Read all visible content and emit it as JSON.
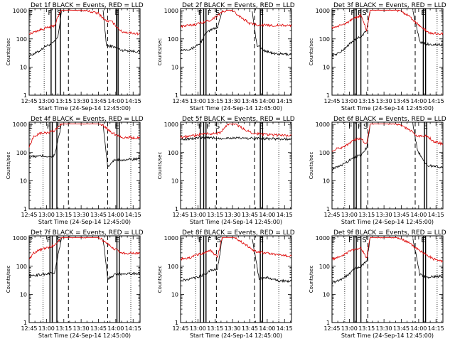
{
  "layout": "3x3 grid",
  "colors": {
    "events": "#000000",
    "lld": "#dd0000",
    "background": "#ffffff",
    "axes": "#000000"
  },
  "shared": {
    "xlabel": "Start Time (24-Sep-14 12:45:00)",
    "ylabel": "Counts/sec",
    "x_tick_labels": [
      "12:45",
      "13:00",
      "13:15",
      "13:30",
      "13:45",
      "14:00",
      "14:15"
    ],
    "y_tick_labels": [
      "1",
      "10",
      "100",
      "1000"
    ],
    "y_scale": "log",
    "ylim": [
      1,
      1200
    ],
    "xlim_minutes": [
      0,
      96
    ],
    "series_names": [
      "Events",
      "LLD"
    ]
  },
  "chart_data": [
    {
      "type": "line",
      "title": "Det 1f BLACK = Events, RED = LLD",
      "markers": [
        {
          "letter": "E",
          "t": 1
        },
        {
          "letter": "F",
          "t": 18
        },
        {
          "letter": "S",
          "t": 26
        },
        {
          "letter": "E",
          "t": 76
        }
      ],
      "solid_lines": [
        19,
        23,
        27,
        75.5,
        77
      ],
      "dashed_lines": [
        34,
        68
      ],
      "dotted_lines": [
        13,
        87
      ],
      "gap": [
        28,
        64
      ],
      "series": [
        {
          "name": "Events",
          "x": [
            0,
            8,
            14,
            19,
            22,
            25,
            28,
            64,
            67,
            72,
            80,
            96
          ],
          "y": [
            25,
            35,
            55,
            65,
            80,
            120,
            1000,
            1000,
            55,
            55,
            40,
            35
          ]
        },
        {
          "name": "LLD",
          "x": [
            0,
            8,
            14,
            19,
            22,
            25,
            28,
            45,
            60,
            66,
            72,
            80,
            96
          ],
          "y": [
            150,
            200,
            240,
            270,
            300,
            600,
            1100,
            1100,
            800,
            450,
            400,
            180,
            150
          ]
        }
      ]
    },
    {
      "type": "line",
      "title": "Det 2f BLACK = Events, RED = LLD",
      "markers": [
        {
          "letter": "F",
          "t": 17
        },
        {
          "letter": "F",
          "t": 25
        },
        {
          "letter": "S",
          "t": 32
        },
        {
          "letter": "E",
          "t": 70
        }
      ],
      "solid_lines": [
        17,
        20,
        22,
        69,
        71
      ],
      "dashed_lines": [
        31,
        64
      ],
      "dotted_lines": [
        13,
        85
      ],
      "gap": [
        36,
        62
      ],
      "series": [
        {
          "name": "Events",
          "x": [
            0,
            10,
            14,
            17,
            22,
            28,
            32,
            36,
            62,
            66,
            72,
            80,
            96
          ],
          "y": [
            40,
            45,
            60,
            70,
            160,
            230,
            260,
            1000,
            1000,
            60,
            40,
            30,
            28
          ]
        },
        {
          "name": "LLD",
          "x": [
            0,
            8,
            14,
            20,
            25,
            30,
            36,
            44,
            52,
            60,
            66,
            76,
            96
          ],
          "y": [
            280,
            300,
            340,
            400,
            450,
            600,
            900,
            1100,
            600,
            350,
            320,
            300,
            300
          ]
        }
      ]
    },
    {
      "type": "line",
      "title": "Det 3f BLACK = Events, RED = LLD",
      "markers": [
        {
          "letter": "E",
          "t": 1
        },
        {
          "letter": "F",
          "t": 18
        },
        {
          "letter": "F",
          "t": 24
        },
        {
          "letter": "S",
          "t": 28
        },
        {
          "letter": "E",
          "t": 79
        }
      ],
      "solid_lines": [
        19,
        21,
        25,
        79,
        81
      ],
      "dashed_lines": [
        31,
        72
      ],
      "dotted_lines": [
        11,
        91
      ],
      "gap": [
        33,
        70
      ],
      "series": [
        {
          "name": "Events",
          "x": [
            0,
            8,
            14,
            19,
            25,
            30,
            33,
            70,
            76,
            82,
            96
          ],
          "y": [
            25,
            35,
            60,
            90,
            120,
            200,
            1000,
            1000,
            80,
            65,
            60
          ]
        },
        {
          "name": "LLD",
          "x": [
            0,
            8,
            14,
            19,
            25,
            30,
            33,
            55,
            66,
            72,
            78,
            84,
            96
          ],
          "y": [
            250,
            300,
            400,
            520,
            700,
            200,
            1100,
            1100,
            700,
            400,
            250,
            160,
            150
          ]
        }
      ]
    },
    {
      "type": "line",
      "title": "Det 4f BLACK = Events, RED = LLD",
      "markers": [
        {
          "letter": "E",
          "t": 1
        },
        {
          "letter": "F",
          "t": 17
        },
        {
          "letter": "S",
          "t": 26
        },
        {
          "letter": "E",
          "t": 76
        }
      ],
      "solid_lines": [
        18,
        20,
        24,
        76,
        78
      ],
      "dashed_lines": [
        34,
        68
      ],
      "dotted_lines": [
        12,
        88
      ],
      "gap": [
        28,
        64
      ],
      "series": [
        {
          "name": "Events",
          "x": [
            0,
            10,
            14,
            18,
            22,
            28,
            64,
            68,
            74,
            82,
            96
          ],
          "y": [
            70,
            75,
            75,
            70,
            80,
            1000,
            1000,
            30,
            55,
            55,
            60
          ]
        },
        {
          "name": "LLD",
          "x": [
            0,
            4,
            10,
            16,
            22,
            28,
            60,
            66,
            72,
            80,
            96
          ],
          "y": [
            150,
            380,
            480,
            500,
            600,
            1100,
            1100,
            800,
            500,
            350,
            330
          ]
        }
      ]
    },
    {
      "type": "line",
      "title": "Det 5f BLACK = Events, RED = LLD",
      "markers": [
        {
          "letter": "F",
          "t": 17
        },
        {
          "letter": "F",
          "t": 24
        },
        {
          "letter": "S",
          "t": 32
        },
        {
          "letter": "E",
          "t": 70
        }
      ],
      "solid_lines": [
        17,
        20,
        22,
        69,
        71
      ],
      "dashed_lines": [
        31,
        64
      ],
      "dotted_lines": [
        13,
        85
      ],
      "gap": [
        34,
        34
      ],
      "series": [
        {
          "name": "Events",
          "x": [
            0,
            10,
            16,
            22,
            28,
            34,
            44,
            56,
            66,
            76,
            96
          ],
          "y": [
            300,
            310,
            340,
            330,
            330,
            320,
            330,
            320,
            320,
            310,
            300
          ]
        },
        {
          "name": "LLD",
          "x": [
            0,
            8,
            16,
            22,
            28,
            34,
            42,
            48,
            54,
            62,
            70,
            80,
            96
          ],
          "y": [
            350,
            380,
            430,
            480,
            460,
            500,
            1100,
            1000,
            700,
            500,
            450,
            420,
            400
          ]
        }
      ]
    },
    {
      "type": "line",
      "title": "Det 6f BLACK = Events, RED = LLD",
      "markers": [
        {
          "letter": "F",
          "t": 16
        },
        {
          "letter": "F",
          "t": 24
        },
        {
          "letter": "S",
          "t": 29
        },
        {
          "letter": "E",
          "t": 81
        }
      ],
      "solid_lines": [
        19,
        21,
        25,
        80,
        82
      ],
      "dashed_lines": [
        31,
        72
      ],
      "dotted_lines": [
        11,
        91
      ],
      "gap": [
        33,
        70
      ],
      "series": [
        {
          "name": "Events",
          "x": [
            0,
            8,
            14,
            19,
            25,
            30,
            33,
            70,
            74,
            82,
            96
          ],
          "y": [
            25,
            35,
            50,
            70,
            80,
            150,
            1000,
            1000,
            120,
            35,
            30
          ]
        },
        {
          "name": "LLD",
          "x": [
            0,
            8,
            14,
            19,
            25,
            30,
            33,
            55,
            66,
            74,
            82,
            88,
            96
          ],
          "y": [
            120,
            150,
            200,
            280,
            320,
            200,
            1100,
            1100,
            700,
            380,
            400,
            250,
            200
          ]
        }
      ]
    },
    {
      "type": "line",
      "title": "Det 7f BLACK = Events, RED = LLD",
      "markers": [
        {
          "letter": "E",
          "t": 1
        },
        {
          "letter": "F",
          "t": 17
        },
        {
          "letter": "S",
          "t": 26
        },
        {
          "letter": "E",
          "t": 76
        }
      ],
      "solid_lines": [
        18,
        20,
        24,
        76,
        78
      ],
      "dashed_lines": [
        34,
        68
      ],
      "dotted_lines": [
        12,
        88
      ],
      "gap": [
        28,
        64
      ],
      "series": [
        {
          "name": "Events",
          "x": [
            0,
            10,
            16,
            22,
            28,
            64,
            68,
            74,
            82,
            96
          ],
          "y": [
            45,
            50,
            55,
            60,
            1000,
            1000,
            35,
            50,
            55,
            55
          ]
        },
        {
          "name": "LLD",
          "x": [
            0,
            4,
            10,
            16,
            22,
            28,
            60,
            66,
            72,
            80,
            96
          ],
          "y": [
            180,
            300,
            400,
            450,
            550,
            1100,
            1100,
            700,
            450,
            300,
            280
          ]
        }
      ]
    },
    {
      "type": "line",
      "title": "Det 8f BLACK = Events, RED = LLD",
      "markers": [
        {
          "letter": "F",
          "t": 17
        },
        {
          "letter": "F",
          "t": 25
        },
        {
          "letter": "S",
          "t": 33
        },
        {
          "letter": "E",
          "t": 70
        }
      ],
      "solid_lines": [
        17,
        20,
        22,
        69,
        71
      ],
      "dashed_lines": [
        31,
        64
      ],
      "dotted_lines": [
        13,
        85
      ],
      "gap": [
        36,
        62
      ],
      "series": [
        {
          "name": "Events",
          "x": [
            0,
            8,
            14,
            20,
            26,
            32,
            36,
            62,
            68,
            76,
            84,
            96
          ],
          "y": [
            30,
            35,
            40,
            50,
            70,
            80,
            1000,
            1000,
            35,
            40,
            30,
            30
          ]
        },
        {
          "name": "LLD",
          "x": [
            0,
            8,
            14,
            20,
            26,
            32,
            36,
            46,
            56,
            64,
            72,
            84,
            96
          ],
          "y": [
            180,
            200,
            250,
            300,
            350,
            220,
            1100,
            1100,
            600,
            350,
            300,
            250,
            230
          ]
        }
      ]
    },
    {
      "type": "line",
      "title": "Det 9f BLACK = Events, RED = LLD",
      "markers": [
        {
          "letter": "E",
          "t": 1
        },
        {
          "letter": "F",
          "t": 16
        },
        {
          "letter": "F",
          "t": 23
        },
        {
          "letter": "S",
          "t": 28
        },
        {
          "letter": "E",
          "t": 79
        }
      ],
      "solid_lines": [
        19,
        21,
        25,
        79,
        81
      ],
      "dashed_lines": [
        31,
        72
      ],
      "dotted_lines": [
        11,
        91
      ],
      "gap": [
        33,
        70
      ],
      "series": [
        {
          "name": "Events",
          "x": [
            0,
            8,
            14,
            19,
            25,
            30,
            33,
            70,
            76,
            82,
            96
          ],
          "y": [
            25,
            35,
            50,
            80,
            100,
            150,
            1000,
            1000,
            50,
            40,
            45
          ]
        },
        {
          "name": "LLD",
          "x": [
            0,
            8,
            14,
            19,
            25,
            30,
            33,
            55,
            66,
            74,
            82,
            88,
            96
          ],
          "y": [
            180,
            230,
            320,
            400,
            450,
            200,
            1100,
            1100,
            700,
            400,
            250,
            180,
            150
          ]
        }
      ]
    }
  ]
}
